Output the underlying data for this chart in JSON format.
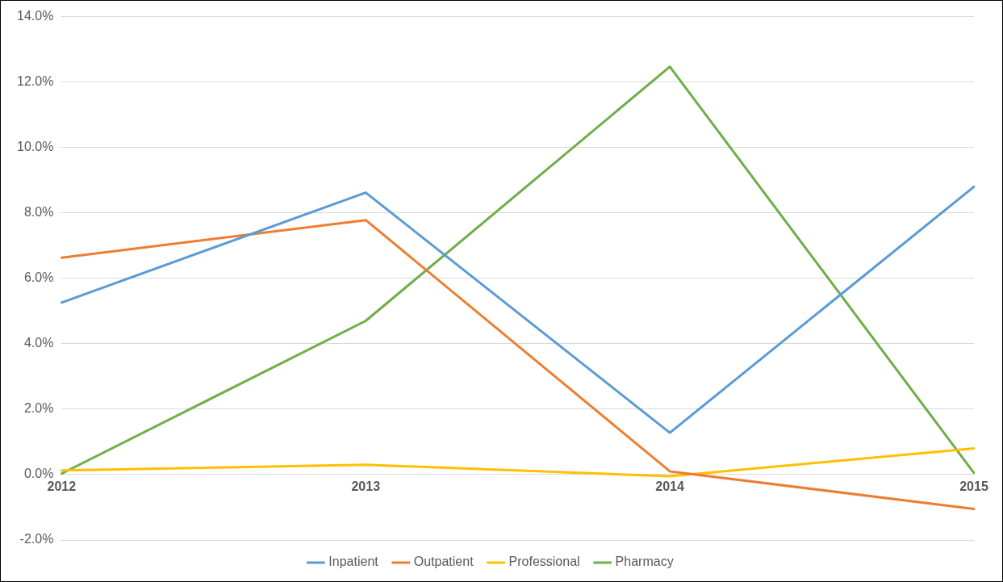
{
  "chart_data": {
    "type": "line",
    "categories": [
      "2012",
      "2013",
      "2014",
      "2015"
    ],
    "series": [
      {
        "name": "Inpatient",
        "color": "#5b9bd5",
        "values": [
          5.26,
          8.62,
          1.28,
          8.8
        ]
      },
      {
        "name": "Outpatient",
        "color": "#ed7d31",
        "values": [
          6.63,
          7.78,
          0.1,
          -1.05
        ]
      },
      {
        "name": "Professional",
        "color": "#ffc000",
        "values": [
          0.13,
          0.3,
          -0.05,
          0.8
        ]
      },
      {
        "name": "Pharmacy",
        "color": "#70ad47",
        "values": [
          0.03,
          4.7,
          12.47,
          0.05
        ]
      }
    ],
    "ylim": [
      -2,
      14
    ],
    "yticks": [
      {
        "value": -2,
        "label": "-2.0%"
      },
      {
        "value": 0,
        "label": "0.0%"
      },
      {
        "value": 2,
        "label": "2.0%"
      },
      {
        "value": 4,
        "label": "4.0%"
      },
      {
        "value": 6,
        "label": "6.0%"
      },
      {
        "value": 8,
        "label": "8.0%"
      },
      {
        "value": 10,
        "label": "10.0%"
      },
      {
        "value": 12,
        "label": "12.0%"
      },
      {
        "value": 14,
        "label": "14.0%"
      }
    ],
    "grid": "y",
    "legend": "bottom",
    "marker": "none",
    "line_style": "solid"
  }
}
